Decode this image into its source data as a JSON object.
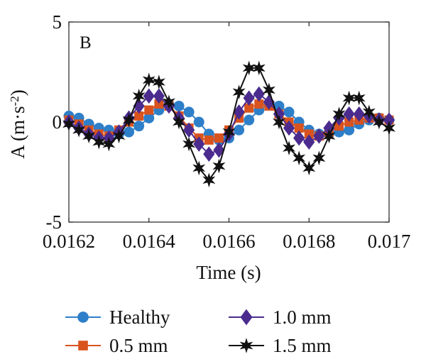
{
  "chart_data": {
    "type": "line",
    "panel_label": "B",
    "xlabel": "Time (s)",
    "ylabel": "A (m·s",
    "ylabel_sup": "-2",
    "ylabel_close": ")",
    "xlim": [
      0.0162,
      0.017
    ],
    "ylim": [
      -5,
      5
    ],
    "xticks": [
      0.0162,
      0.0164,
      0.0166,
      0.0168,
      0.017
    ],
    "xtick_labels": [
      "0.0162",
      "0.0164",
      "0.0166",
      "0.0168",
      "0.017"
    ],
    "yticks": [
      -5,
      0,
      5
    ],
    "ytick_labels": [
      "-5",
      "0",
      "5"
    ],
    "legend_position": "bottom",
    "series": [
      {
        "name": "Healthy",
        "color": "#2E7FC9",
        "marker": "circle",
        "x": [
          0.0162,
          0.016225,
          0.01625,
          0.016275,
          0.0163,
          0.016325,
          0.01635,
          0.016375,
          0.0164,
          0.016425,
          0.01645,
          0.016475,
          0.0165,
          0.016525,
          0.01655,
          0.016575,
          0.0166,
          0.016625,
          0.01665,
          0.016675,
          0.0167,
          0.016725,
          0.01675,
          0.016775,
          0.0168,
          0.016825,
          0.01685,
          0.016875,
          0.0169,
          0.016925,
          0.01695,
          0.016975,
          0.017
        ],
        "y": [
          0.3,
          0.2,
          -0.1,
          -0.3,
          -0.4,
          -0.6,
          -0.5,
          -0.2,
          0.2,
          0.6,
          0.9,
          0.8,
          0.5,
          0.0,
          -0.6,
          -0.9,
          -0.8,
          -0.4,
          0.1,
          0.6,
          0.9,
          0.8,
          0.5,
          0.0,
          -0.4,
          -0.6,
          -0.6,
          -0.5,
          -0.4,
          -0.1,
          0.1,
          0.2,
          0.1
        ]
      },
      {
        "name": "0.5 mm",
        "color": "#D9531E",
        "marker": "square",
        "x": [
          0.0162,
          0.016225,
          0.01625,
          0.016275,
          0.0163,
          0.016325,
          0.01635,
          0.016375,
          0.0164,
          0.016425,
          0.01645,
          0.016475,
          0.0165,
          0.016525,
          0.01655,
          0.016575,
          0.0166,
          0.016625,
          0.01665,
          0.016675,
          0.0167,
          0.016725,
          0.01675,
          0.016775,
          0.0168,
          0.016825,
          0.01685,
          0.016875,
          0.0169,
          0.016925,
          0.01695,
          0.016975,
          0.017
        ],
        "y": [
          0.1,
          -0.1,
          -0.4,
          -0.6,
          -0.7,
          -0.4,
          0.0,
          0.3,
          0.6,
          0.9,
          0.8,
          0.3,
          -0.3,
          -0.8,
          -0.9,
          -0.8,
          -0.4,
          0.2,
          0.7,
          0.9,
          0.8,
          0.4,
          0.0,
          -0.3,
          -0.6,
          -0.7,
          -0.5,
          -0.2,
          0.0,
          0.1,
          0.2,
          0.2,
          0.1
        ]
      },
      {
        "name": "1.0 mm",
        "color": "#4B2C8E",
        "marker": "diamond",
        "x": [
          0.0162,
          0.016225,
          0.01625,
          0.016275,
          0.0163,
          0.016325,
          0.01635,
          0.016375,
          0.0164,
          0.016425,
          0.01645,
          0.016475,
          0.0165,
          0.016525,
          0.01655,
          0.016575,
          0.0166,
          0.016625,
          0.01665,
          0.016675,
          0.0167,
          0.016725,
          0.01675,
          0.016775,
          0.0168,
          0.016825,
          0.01685,
          0.016875,
          0.0169,
          0.016925,
          0.01695,
          0.016975,
          0.017
        ],
        "y": [
          0.0,
          -0.3,
          -0.6,
          -0.8,
          -0.8,
          -0.5,
          0.2,
          0.8,
          1.3,
          1.3,
          0.8,
          0.2,
          -0.4,
          -1.1,
          -1.6,
          -1.4,
          -0.6,
          0.5,
          1.2,
          1.4,
          1.0,
          0.4,
          -0.3,
          -0.8,
          -1.0,
          -0.7,
          -0.3,
          0.2,
          0.4,
          0.4,
          0.3,
          0.1,
          0.1
        ]
      },
      {
        "name": "1.5 mm",
        "color": "#111111",
        "marker": "star",
        "x": [
          0.0162,
          0.016225,
          0.01625,
          0.016275,
          0.0163,
          0.016325,
          0.01635,
          0.016375,
          0.0164,
          0.016425,
          0.01645,
          0.016475,
          0.0165,
          0.016525,
          0.01655,
          0.016575,
          0.0166,
          0.016625,
          0.01665,
          0.016675,
          0.0167,
          0.016725,
          0.01675,
          0.016775,
          0.0168,
          0.016825,
          0.01685,
          0.016875,
          0.0169,
          0.016925,
          0.01695,
          0.016975,
          0.017
        ],
        "y": [
          -0.1,
          -0.4,
          -0.7,
          -1.0,
          -1.1,
          -0.7,
          0.1,
          1.3,
          2.1,
          2.0,
          1.0,
          0.0,
          -1.1,
          -2.3,
          -2.9,
          -2.2,
          -0.5,
          1.5,
          2.7,
          2.7,
          1.6,
          0.0,
          -1.3,
          -1.8,
          -2.3,
          -1.8,
          -0.7,
          0.4,
          1.2,
          1.2,
          0.5,
          0.0,
          -0.3
        ]
      }
    ]
  }
}
